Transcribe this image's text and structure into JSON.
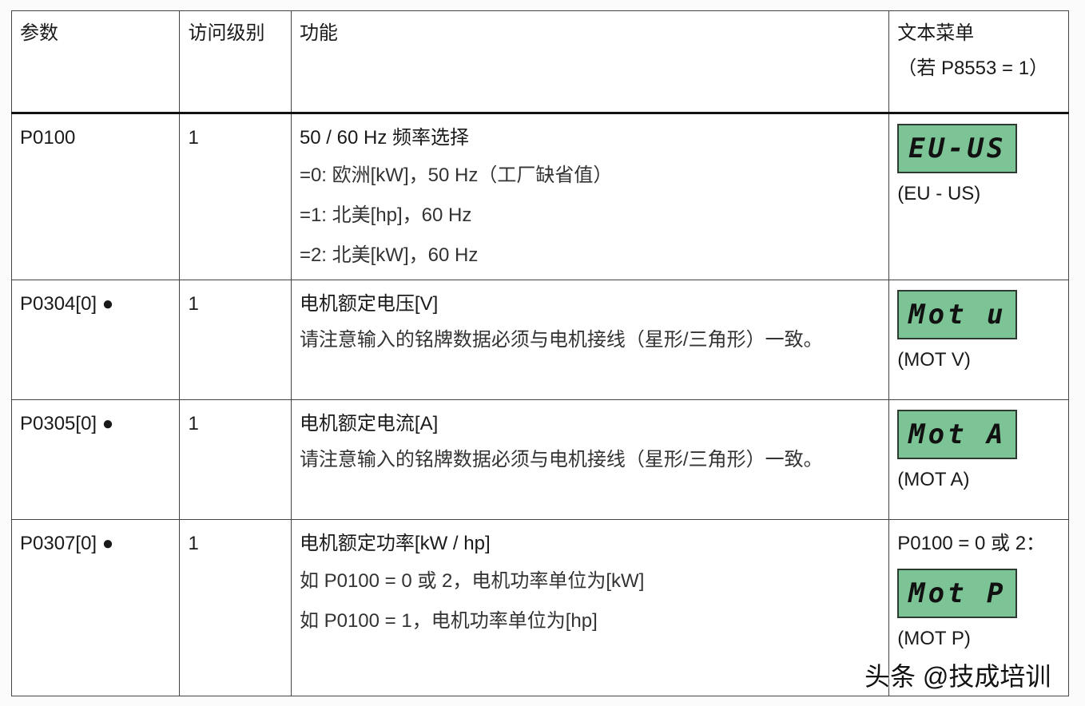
{
  "header": {
    "param": "参数",
    "access": "访问级别",
    "function": "功能",
    "text_menu": "文本菜单",
    "text_menu_cond": "（若 P8553 = 1）"
  },
  "rows": [
    {
      "param": "P0100",
      "access": "1",
      "title": "50 / 60 Hz 频率选择",
      "lines": [
        "=0: 欧洲[kW]，50 Hz（工厂缺省值）",
        "=1: 北美[hp]，60 Hz",
        "=2: 北美[kW]，60 Hz"
      ],
      "lcd": "EU-US",
      "lcd_caption": "(EU - US)"
    },
    {
      "param": "P0304[0] ●",
      "access": "1",
      "title": "电机额定电压[V]",
      "lines": [
        "请注意输入的铭牌数据必须与电机接线（星形/三角形）一致。"
      ],
      "lcd": "Mot u",
      "lcd_caption": "(MOT V)"
    },
    {
      "param": "P0305[0] ●",
      "access": "1",
      "title": "电机额定电流[A]",
      "lines": [
        "请注意输入的铭牌数据必须与电机接线（星形/三角形）一致。"
      ],
      "lcd": "Mot A",
      "lcd_caption": "(MOT A)"
    },
    {
      "param": "P0307[0] ●",
      "access": "1",
      "title": "电机额定功率[kW / hp]",
      "lines": [
        "如 P0100 = 0 或 2，电机功率单位为[kW]",
        "如 P0100 = 1，电机功率单位为[hp]"
      ],
      "lcd_pre": "P0100 = 0 或 2：",
      "lcd": "Mot P",
      "lcd_caption": "(MOT P)"
    }
  ],
  "watermark": "头条 @技成培训",
  "colors": {
    "lcd_bg": "#7cc495"
  }
}
